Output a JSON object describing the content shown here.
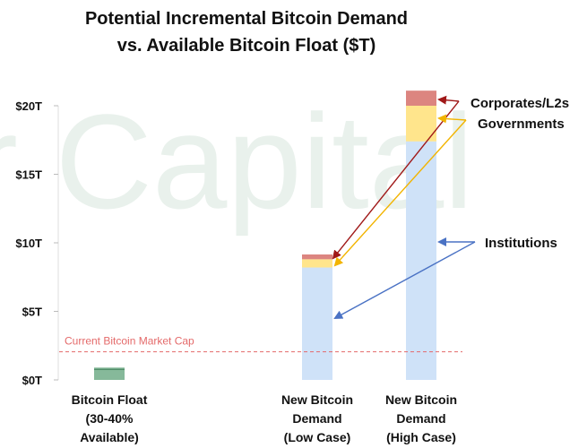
{
  "chart_data": {
    "type": "bar",
    "stacked": true,
    "title_lines": [
      "Potential Incremental Bitcoin Demand",
      "vs. Available Bitcoin Float ($T)"
    ],
    "categories": [
      [
        "Bitcoin Float",
        "(30-40%",
        "Available)"
      ],
      [
        "New Bitcoin",
        "Demand",
        "(Low Case)"
      ],
      [
        "New Bitcoin",
        "Demand",
        "(High Case)"
      ]
    ],
    "y_ticks": [
      {
        "value": 0,
        "label": "$0T"
      },
      {
        "value": 5,
        "label": "$5T"
      },
      {
        "value": 10,
        "label": "$10T"
      },
      {
        "value": 15,
        "label": "$15T"
      },
      {
        "value": 20,
        "label": "$20T"
      }
    ],
    "ylim": [
      0,
      20.5
    ],
    "float_value": 0.9,
    "float_color": "#86b99a",
    "series": [
      {
        "name": "Institutions",
        "values": [
          null,
          8.2,
          17.4
        ],
        "color": "#cfe2f8"
      },
      {
        "name": "Governments",
        "values": [
          null,
          0.6,
          2.6
        ],
        "color": "#ffe58c"
      },
      {
        "name": "Corporates/L2s",
        "values": [
          null,
          0.35,
          1.1
        ],
        "color": "#dc8580"
      }
    ],
    "reference_line": {
      "value": 2.05,
      "label": "Current Bitcoin Market Cap",
      "color": "#e46a6a"
    },
    "annotation_colors": {
      "Corporates/L2s": "#a01818",
      "Governments": "#f2b400",
      "Institutions": "#4a72c4"
    },
    "watermark": "r Capital",
    "grid": false,
    "legend": "none"
  }
}
